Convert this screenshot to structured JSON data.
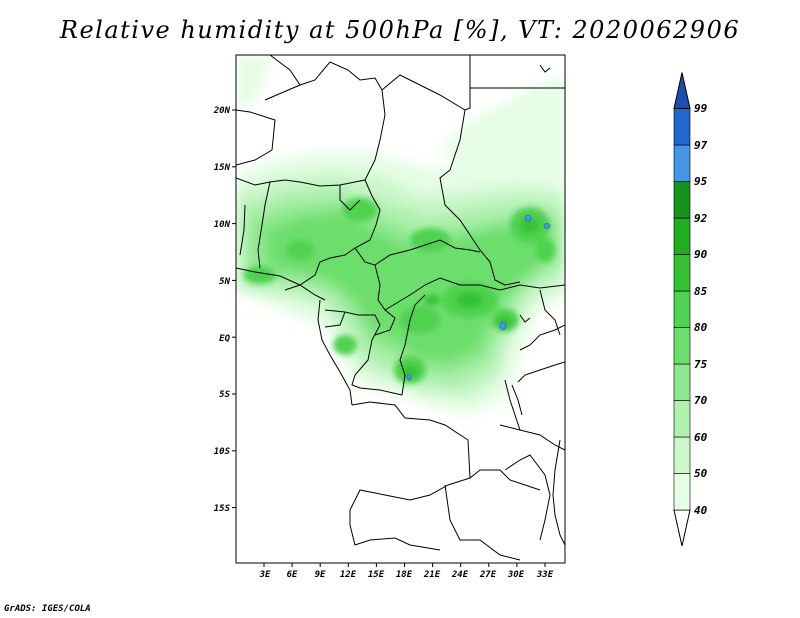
{
  "title": "Relative humidity at 500hPa [%], VT: 2020062906",
  "credit": "GrADS: IGES/COLA",
  "axes": {
    "lat_labels": [
      "20N",
      "15N",
      "10N",
      "5N",
      "EQ",
      "5S",
      "10S",
      "15S"
    ],
    "lon_labels": [
      "3E",
      "6E",
      "9E",
      "12E",
      "15E",
      "18E",
      "21E",
      "24E",
      "27E",
      "30E",
      "33E"
    ]
  },
  "colorbar": {
    "levels": [
      "40",
      "50",
      "60",
      "70",
      "75",
      "80",
      "85",
      "90",
      "92",
      "95",
      "97",
      "99"
    ],
    "colors": [
      "#ffffff",
      "#e6fde6",
      "#cbf7cb",
      "#aef0ae",
      "#8ee88e",
      "#6cde6c",
      "#4fd24f",
      "#34c234",
      "#20ad20",
      "#14951a",
      "#4596e8",
      "#2068d0",
      "#1a4fb0"
    ]
  }
}
